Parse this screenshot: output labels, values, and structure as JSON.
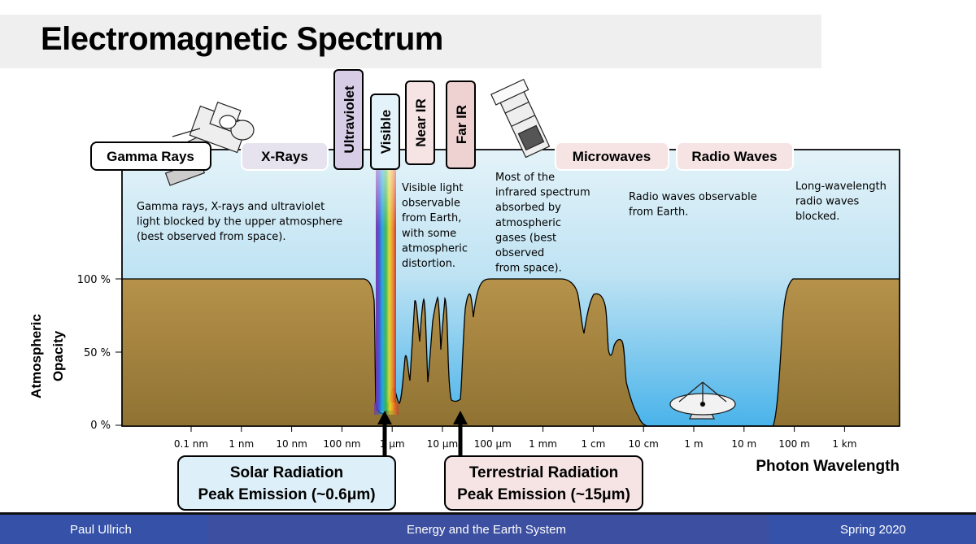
{
  "title": "Electromagnetic Spectrum",
  "bands": {
    "gamma": "Gamma Rays",
    "xray": "X-Rays",
    "uv": "Ultraviolet",
    "visible": "Visible",
    "near_ir": "Near IR",
    "far_ir": "Far IR",
    "microwaves": "Microwaves",
    "radio": "Radio Waves"
  },
  "annotations": {
    "blocked": [
      "Gamma rays, X-rays and ultraviolet",
      "light blocked by the upper atmosphere",
      "(best observed from space)."
    ],
    "visible": [
      "Visible light",
      "observable",
      "from Earth,",
      "with some",
      "atmospheric",
      "distortion."
    ],
    "infrared": [
      "Most of the",
      "infrared spectrum",
      "absorbed by",
      "atmospheric",
      "gases (best",
      "observed",
      "from space)."
    ],
    "radio": [
      "Radio waves observable",
      "from Earth."
    ],
    "long_wave": [
      "Long-wavelength",
      "radio waves",
      "blocked."
    ]
  },
  "y_axis": {
    "label_line1": "Atmospheric",
    "label_line2": "Opacity",
    "ticks": [
      "100 %",
      "50 %",
      "0 %"
    ]
  },
  "x_axis": {
    "label": "Photon Wavelength",
    "ticks": [
      "0.1 nm",
      "1 nm",
      "10 nm",
      "100 nm",
      "1 μm",
      "10 μm",
      "100 μm",
      "1 mm",
      "1 cm",
      "10 cm",
      "1 m",
      "10 m",
      "100 m",
      "1 km"
    ]
  },
  "peaks": {
    "solar_line1": "Solar Radiation",
    "solar_line2": "Peak Emission (~0.6μm)",
    "terrestrial_line1": "Terrestrial Radiation",
    "terrestrial_line2": "Peak Emission (~15μm)"
  },
  "footer": {
    "author": "Paul Ullrich",
    "course": "Energy and the Earth System",
    "term": "Spring 2020"
  },
  "colors": {
    "sky_top": "#dff1f8",
    "sky_bottom": "#4fb6ea",
    "ground": "#a88740",
    "footer": "#3d4fa0"
  }
}
